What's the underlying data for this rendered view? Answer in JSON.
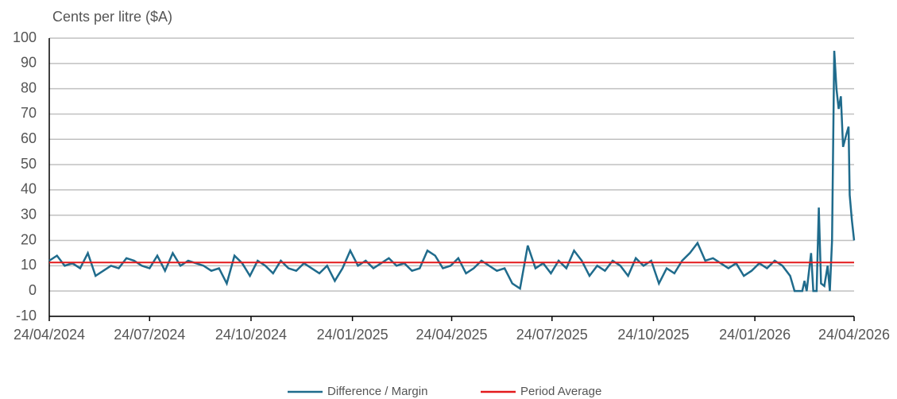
{
  "chart_data": {
    "type": "line",
    "y_axis_label": "Cents per litre ($A)",
    "ylim": [
      -10,
      100
    ],
    "yticks": [
      -10,
      0,
      10,
      20,
      30,
      40,
      50,
      60,
      70,
      80,
      90,
      100
    ],
    "xlim": [
      "24/04/2024",
      "24/04/2026"
    ],
    "xticks": [
      "24/04/2024",
      "24/07/2024",
      "24/10/2024",
      "24/01/2025",
      "24/04/2025",
      "24/07/2025",
      "24/10/2025",
      "24/01/2026",
      "24/04/2026"
    ],
    "grid": true,
    "legend": "bottom",
    "x": [
      "24/04/2024",
      "01/05/2024",
      "08/05/2024",
      "15/05/2024",
      "22/05/2024",
      "29/05/2024",
      "05/06/2024",
      "12/06/2024",
      "19/06/2024",
      "26/06/2024",
      "03/07/2024",
      "10/07/2024",
      "17/07/2024",
      "24/07/2024",
      "31/07/2024",
      "07/08/2024",
      "14/08/2024",
      "21/08/2024",
      "28/08/2024",
      "04/09/2024",
      "11/09/2024",
      "18/09/2024",
      "25/09/2024",
      "02/10/2024",
      "09/10/2024",
      "16/10/2024",
      "23/10/2024",
      "30/10/2024",
      "06/11/2024",
      "13/11/2024",
      "20/11/2024",
      "27/11/2024",
      "04/12/2024",
      "11/12/2024",
      "18/12/2024",
      "25/12/2024",
      "01/01/2025",
      "08/01/2025",
      "15/01/2025",
      "22/01/2025",
      "29/01/2025",
      "05/02/2025",
      "12/02/2025",
      "19/02/2025",
      "26/02/2025",
      "05/03/2025",
      "12/03/2025",
      "19/03/2025",
      "26/03/2025",
      "02/04/2025",
      "09/04/2025",
      "16/04/2025",
      "23/04/2025",
      "30/04/2025",
      "07/05/2025",
      "14/05/2025",
      "21/05/2025",
      "28/05/2025",
      "04/06/2025",
      "11/06/2025",
      "18/06/2025",
      "25/06/2025",
      "02/07/2025",
      "09/07/2025",
      "16/07/2025",
      "23/07/2025",
      "30/07/2025",
      "06/08/2025",
      "13/08/2025",
      "20/08/2025",
      "27/08/2025",
      "03/09/2025",
      "10/09/2025",
      "17/09/2025",
      "24/09/2025",
      "01/10/2025",
      "08/10/2025",
      "15/10/2025",
      "22/10/2025",
      "29/10/2025",
      "05/11/2025",
      "12/11/2025",
      "19/11/2025",
      "26/11/2025",
      "03/12/2025",
      "10/12/2025",
      "17/12/2025",
      "24/12/2025",
      "31/12/2025",
      "07/01/2026",
      "14/01/2026",
      "21/01/2026",
      "28/01/2026",
      "04/02/2026",
      "11/02/2026",
      "18/02/2026",
      "25/02/2026",
      "01/03/2026",
      "08/03/2026",
      "10/03/2026",
      "12/03/2026",
      "16/03/2026",
      "18/03/2026",
      "21/03/2026",
      "23/03/2026",
      "25/03/2026",
      "28/03/2026",
      "31/03/2026",
      "02/04/2026",
      "04/04/2026",
      "06/04/2026",
      "08/04/2026",
      "10/04/2026",
      "12/04/2026",
      "14/04/2026",
      "17/04/2026",
      "19/04/2026",
      "20/04/2026",
      "22/04/2026",
      "24/04/2026"
    ],
    "series": [
      {
        "name": "Difference / Margin",
        "color": "#1f6b8c",
        "values": [
          12,
          14,
          10,
          11,
          9,
          15,
          6,
          8,
          10,
          9,
          13,
          12,
          10,
          9,
          14,
          8,
          15,
          10,
          12,
          11,
          10,
          8,
          9,
          3,
          14,
          11,
          6,
          12,
          10,
          7,
          12,
          9,
          8,
          11,
          9,
          7,
          10,
          4,
          9,
          16,
          10,
          12,
          9,
          11,
          13,
          10,
          11,
          8,
          9,
          16,
          14,
          9,
          10,
          13,
          7,
          9,
          12,
          10,
          8,
          9,
          3,
          1,
          18,
          9,
          11,
          7,
          12,
          9,
          16,
          12,
          6,
          10,
          8,
          12,
          10,
          6,
          13,
          10,
          12,
          3,
          9,
          7,
          12,
          15,
          19,
          12,
          13,
          11,
          9,
          11,
          6,
          8,
          11,
          9,
          12,
          10,
          6,
          0,
          0,
          4,
          0,
          15,
          0,
          0,
          33,
          3,
          2,
          10,
          0,
          20,
          95,
          80,
          72,
          77,
          57,
          62,
          65,
          38,
          28,
          20
        ]
      },
      {
        "name": "Period Average",
        "color": "#e31a1c",
        "x": [
          "24/04/2024",
          "24/04/2026"
        ],
        "values": [
          11.3,
          11.3
        ]
      }
    ]
  }
}
